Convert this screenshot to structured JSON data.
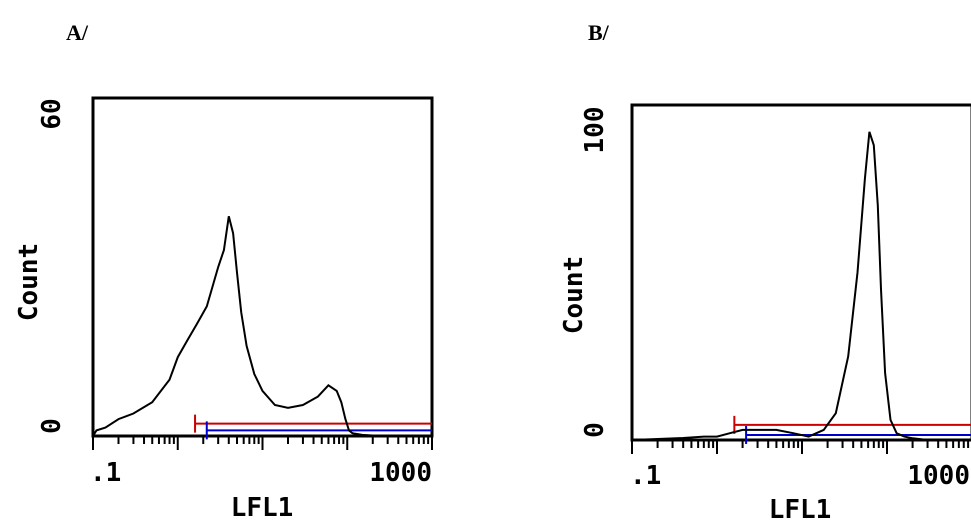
{
  "panels": [
    {
      "label": "A/",
      "chart_data": {
        "type": "line",
        "title": "",
        "xlabel": "LFL1",
        "ylabel": "Count",
        "xscale": "log",
        "xlim": [
          0.1,
          1000
        ],
        "ylim": [
          0,
          60
        ],
        "x_tick_labels": [
          ".1",
          "1000"
        ],
        "y_tick_labels": [
          "0",
          "60"
        ],
        "grid": false,
        "series": [
          {
            "color": "#000000",
            "x": [
              0.1,
              0.1,
              0.11,
              0.14,
              0.2,
              0.3,
              0.5,
              0.8,
              1.0,
              1.3,
              1.7,
              2.2,
              3.0,
              3.5,
              4.0,
              4.5,
              5.0,
              5.6,
              6.5,
              8.0,
              10,
              14,
              20,
              30,
              45,
              60,
              75,
              85,
              95,
              105,
              115,
              150,
              250,
              500,
              1000
            ],
            "y": [
              36,
              0,
              1,
              1.5,
              3,
              4,
              6,
              10,
              14,
              17,
              20,
              23,
              30,
              33,
              39,
              36,
              29,
              22,
              16,
              11,
              8,
              5.5,
              5,
              5.5,
              7,
              9,
              8,
              6,
              3,
              1,
              0.5,
              0.2,
              0,
              0,
              0
            ]
          }
        ],
        "markers": [
          {
            "color": "#cc0000",
            "x_start": 1.6,
            "x_end": 1000,
            "y": 2.2
          },
          {
            "color": "#0000cc",
            "x_start": 2.2,
            "x_end": 1000,
            "y": 1.0
          }
        ]
      }
    },
    {
      "label": "B/",
      "chart_data": {
        "type": "line",
        "title": "",
        "xlabel": "LFL1",
        "ylabel": "Count",
        "xscale": "log",
        "xlim": [
          0.1,
          1000
        ],
        "ylim": [
          0,
          100
        ],
        "x_tick_labels": [
          ".1",
          "1000"
        ],
        "y_tick_labels": [
          "0",
          "100"
        ],
        "grid": false,
        "series": [
          {
            "color": "#000000",
            "x": [
              0.1,
              0.2,
              0.4,
              0.7,
              1.0,
              1.4,
              2.0,
              3.0,
              5.0,
              8.0,
              12,
              18,
              25,
              35,
              45,
              55,
              62,
              70,
              78,
              85,
              95,
              110,
              130,
              160,
              200,
              300,
              500,
              1000
            ],
            "y": [
              0,
              0.3,
              0.6,
              1,
              1,
              2,
              3,
              3,
              3,
              2,
              1,
              3,
              8,
              25,
              50,
              78,
              92,
              88,
              70,
              45,
              20,
              6,
              2,
              1,
              0.5,
              0,
              0,
              0
            ]
          }
        ],
        "markers": [
          {
            "color": "#cc0000",
            "x_start": 1.6,
            "x_end": 1000,
            "y": 4.5
          },
          {
            "color": "#0000cc",
            "x_start": 2.2,
            "x_end": 1000,
            "y": 1.5
          }
        ]
      }
    }
  ]
}
